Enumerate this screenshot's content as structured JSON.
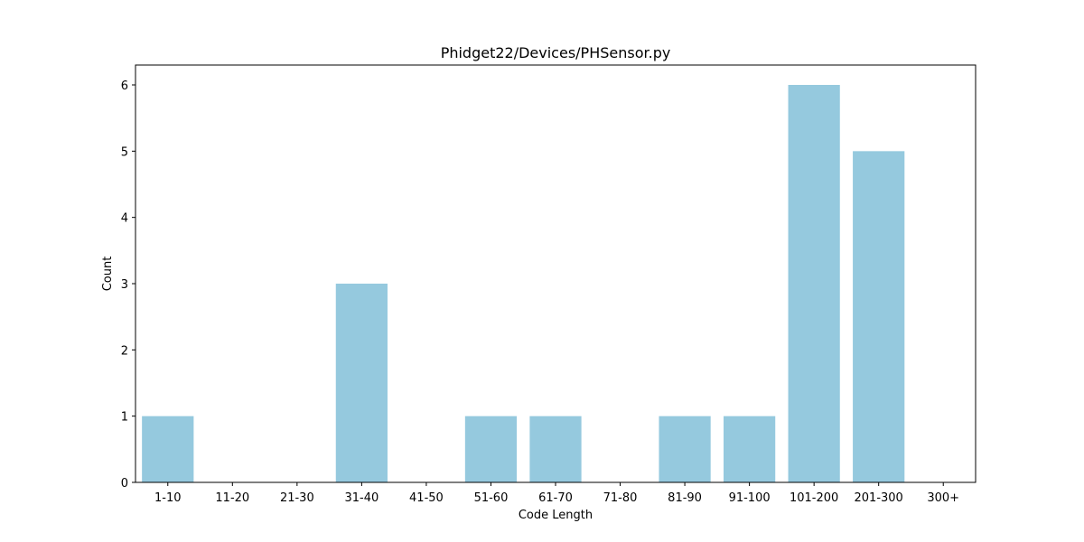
{
  "chart_data": {
    "type": "bar",
    "title": "Phidget22/Devices/PHSensor.py",
    "xlabel": "Code Length",
    "ylabel": "Count",
    "categories": [
      "1-10",
      "11-20",
      "21-30",
      "31-40",
      "41-50",
      "51-60",
      "61-70",
      "71-80",
      "81-90",
      "91-100",
      "101-200",
      "201-300",
      "300+"
    ],
    "values": [
      1,
      0,
      0,
      3,
      0,
      1,
      1,
      0,
      1,
      1,
      6,
      5,
      0
    ],
    "yticks": [
      0,
      1,
      2,
      3,
      4,
      5,
      6
    ],
    "ylim": [
      0,
      6.3
    ],
    "grid": false,
    "bar_color": "#95c9de"
  }
}
